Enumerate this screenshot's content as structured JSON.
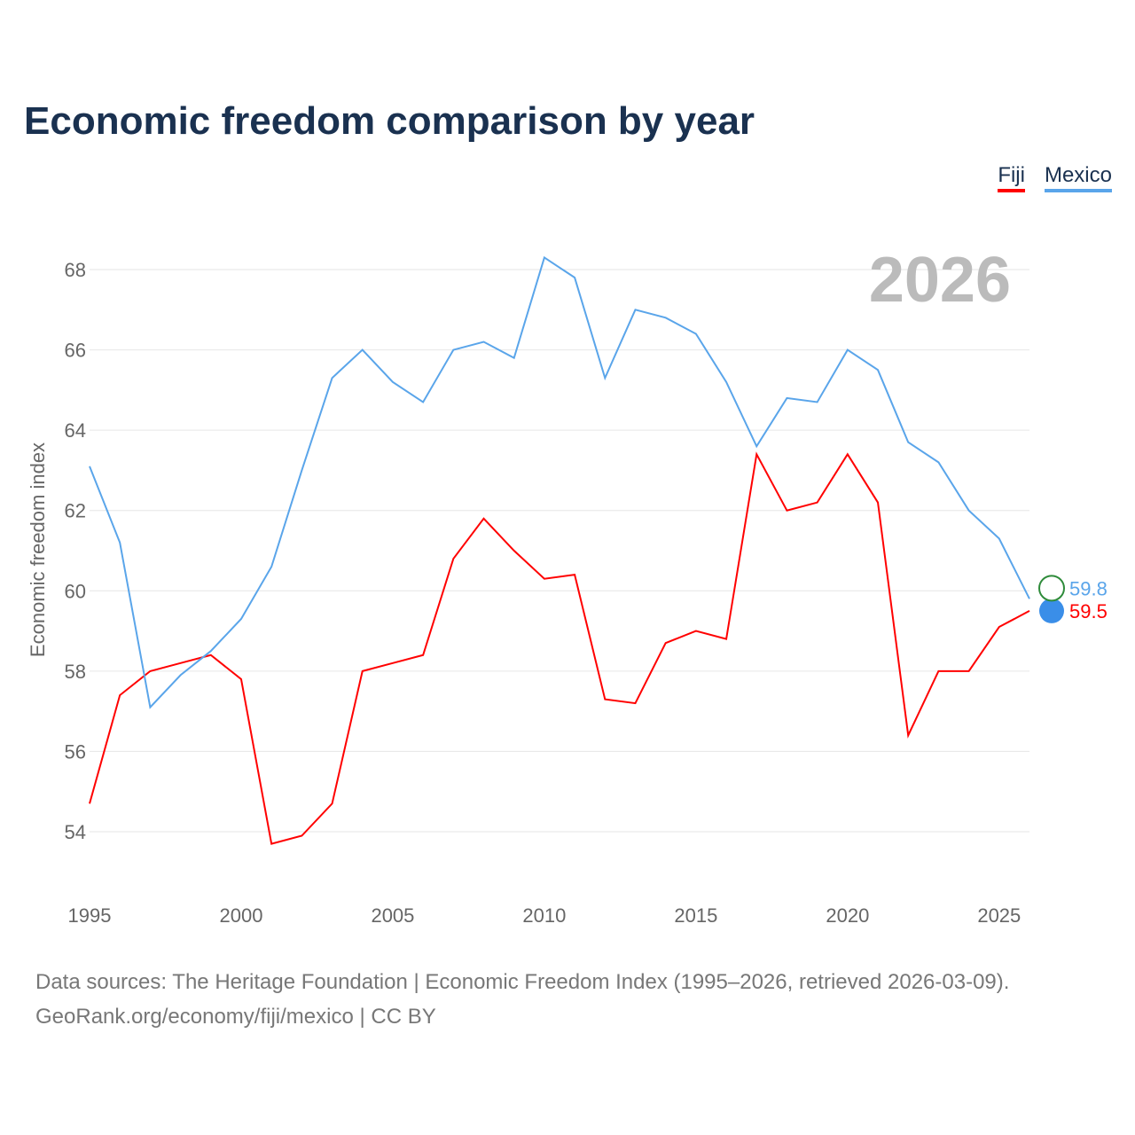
{
  "title": "Economic freedom comparison by year",
  "source_line1": "Data sources: The Heritage Foundation | Economic Freedom Index (1995–2026, retrieved 2026-03-09).",
  "source_line2": "GeoRank.org/economy/fiji/mexico | CC BY",
  "chart_data": {
    "type": "line",
    "title": "Economic freedom comparison by year",
    "ylabel": "Economic freedom index",
    "xlabel": "",
    "year_label": "2026",
    "x": [
      1995,
      1996,
      1997,
      1998,
      1999,
      2000,
      2001,
      2002,
      2003,
      2004,
      2005,
      2006,
      2007,
      2008,
      2009,
      2010,
      2011,
      2012,
      2013,
      2014,
      2015,
      2016,
      2017,
      2018,
      2019,
      2020,
      2021,
      2022,
      2023,
      2024,
      2025,
      2026
    ],
    "xticks": [
      "1995",
      "2000",
      "2005",
      "2010",
      "2015",
      "2020",
      "2025"
    ],
    "yticks": [
      "54",
      "56",
      "58",
      "60",
      "62",
      "64",
      "66",
      "68"
    ],
    "xlim": [
      1995,
      2026
    ],
    "ylim": [
      54,
      68
    ],
    "legend_position": "top-right",
    "series": [
      {
        "name": "Fiji",
        "color": "#ff0000",
        "end_label": "59.5",
        "values": [
          54.7,
          57.4,
          58.0,
          58.2,
          58.4,
          57.8,
          53.7,
          53.9,
          54.7,
          58.0,
          58.2,
          58.4,
          60.8,
          61.8,
          61.0,
          60.3,
          60.4,
          57.3,
          57.2,
          58.7,
          59.0,
          58.8,
          63.4,
          62.0,
          62.2,
          63.4,
          62.2,
          56.4,
          58.0,
          58.0,
          59.1,
          59.5
        ]
      },
      {
        "name": "Mexico",
        "color": "#5aa5ea",
        "end_label": "59.8",
        "values": [
          63.1,
          61.2,
          57.1,
          57.9,
          58.5,
          59.3,
          60.6,
          63.0,
          65.3,
          66.0,
          65.2,
          64.7,
          66.0,
          66.2,
          65.8,
          68.3,
          67.8,
          65.3,
          67.0,
          66.8,
          66.4,
          65.2,
          63.6,
          64.8,
          64.7,
          66.0,
          65.5,
          63.7,
          63.2,
          62.0,
          61.3,
          59.8
        ]
      }
    ]
  }
}
